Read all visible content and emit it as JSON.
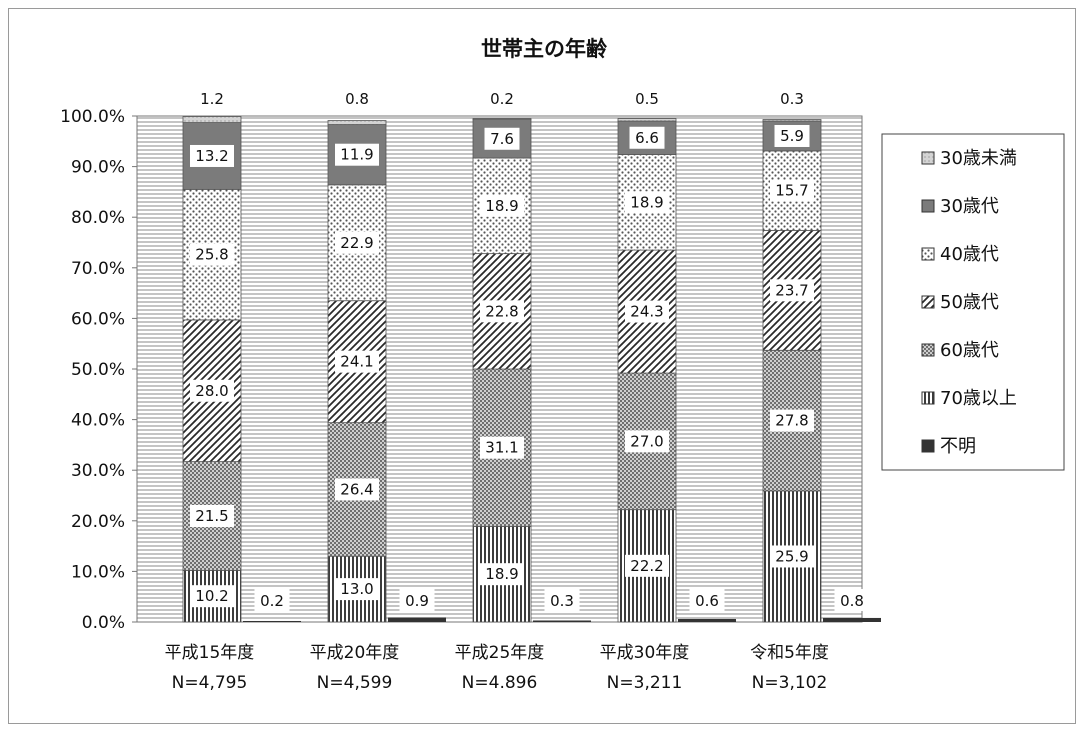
{
  "chart_data": {
    "type": "bar",
    "stacked": true,
    "title": "世帯主の年齢",
    "categories": [
      "平成15年度",
      "平成20年度",
      "平成25年度",
      "平成30年度",
      "令和5年度"
    ],
    "n_labels": [
      "N=4,795",
      "N=4,599",
      "N=4.896",
      "N=3,211",
      "N=3,102"
    ],
    "ylim": [
      0,
      100
    ],
    "yticks": [
      "0.0%",
      "10.0%",
      "20.0%",
      "30.0%",
      "40.0%",
      "50.0%",
      "60.0%",
      "70.0%",
      "80.0%",
      "90.0%",
      "100.0%"
    ],
    "grid": true,
    "legend_position": "right",
    "series": [
      {
        "name": "30歳未満",
        "values": [
          1.2,
          0.8,
          0.2,
          0.5,
          0.3
        ],
        "labels": [
          "1.2",
          "0.8",
          "0.2",
          "0.5",
          "0.3"
        ]
      },
      {
        "name": "30歳代",
        "values": [
          13.2,
          11.9,
          7.6,
          6.6,
          5.9
        ],
        "labels": [
          "13.2",
          "11.9",
          "7.6",
          "6.6",
          "5.9"
        ]
      },
      {
        "name": "40歳代",
        "values": [
          25.8,
          22.9,
          18.9,
          18.9,
          15.7
        ],
        "labels": [
          "25.8",
          "22.9",
          "18.9",
          "18.9",
          "15.7"
        ]
      },
      {
        "name": "50歳代",
        "values": [
          28.0,
          24.1,
          22.8,
          24.3,
          23.7
        ],
        "labels": [
          "28.0",
          "24.1",
          "22.8",
          "24.3",
          "23.7"
        ]
      },
      {
        "name": "60歳代",
        "values": [
          21.5,
          26.4,
          31.1,
          27.0,
          27.8
        ],
        "labels": [
          "21.5",
          "26.4",
          "31.1",
          "27.0",
          "27.8"
        ]
      },
      {
        "name": "70歳以上",
        "values": [
          10.2,
          13.0,
          18.9,
          22.2,
          25.9
        ],
        "labels": [
          "10.2",
          "13.0",
          "18.9",
          "22.2",
          "25.9"
        ]
      },
      {
        "name": "不明",
        "values": [
          0.2,
          0.9,
          0.3,
          0.6,
          0.8
        ],
        "labels": [
          "0.2",
          "0.9",
          "0.3",
          "0.6",
          "0.8"
        ]
      }
    ]
  }
}
